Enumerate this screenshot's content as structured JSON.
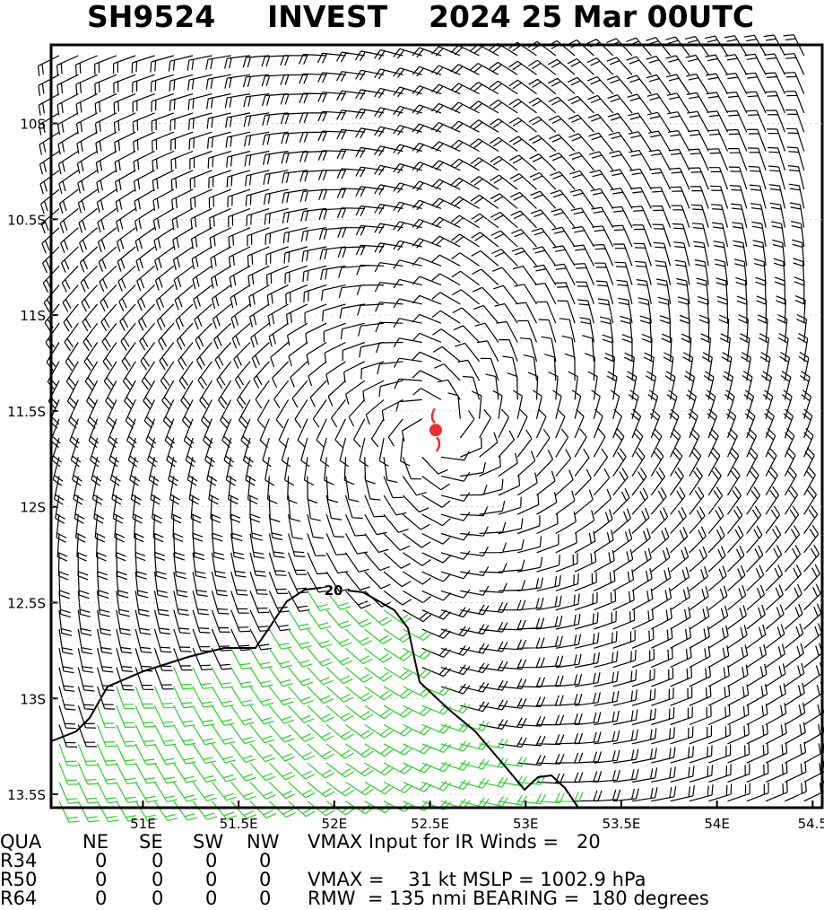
{
  "title": {
    "storm_id": "SH9524",
    "name": "INVEST",
    "time": "2024 25 Mar 00UTC"
  },
  "map": {
    "lon_range": [
      50.52,
      54.55
    ],
    "lat_range": [
      -9.59,
      -13.57
    ],
    "lat_ticks": [
      {
        "value": -10,
        "label": "10S"
      },
      {
        "value": -10.5,
        "label": "10.5S"
      },
      {
        "value": -11,
        "label": "11S"
      },
      {
        "value": -11.5,
        "label": "11.5S"
      },
      {
        "value": -12,
        "label": "12S"
      },
      {
        "value": -12.5,
        "label": "12.5S"
      },
      {
        "value": -13,
        "label": "13S"
      },
      {
        "value": -13.5,
        "label": "13.5S"
      }
    ],
    "lon_ticks": [
      {
        "value": 51,
        "label": "51E"
      },
      {
        "value": 51.5,
        "label": "51.5E"
      },
      {
        "value": 52,
        "label": "52E"
      },
      {
        "value": 52.5,
        "label": "52.5E"
      },
      {
        "value": 53,
        "label": "53E"
      },
      {
        "value": 53.5,
        "label": "53.5E"
      },
      {
        "value": 54,
        "label": "54E"
      },
      {
        "value": 54.5,
        "label": "54.5"
      }
    ],
    "center": {
      "lon": 52.53,
      "lat": -11.6
    },
    "contour_label": "20"
  },
  "table": {
    "header": [
      "QUA",
      "NE",
      "SE",
      "SW",
      "NW"
    ],
    "rows": [
      [
        "R34",
        0,
        0,
        0,
        0
      ],
      [
        "R50",
        0,
        0,
        0,
        0
      ],
      [
        "R64",
        0,
        0,
        0,
        0
      ]
    ]
  },
  "info": [
    "VMAX Input for IR Winds =   20",
    "VMAX =    31 kt MSLP = 1002.9 hPa",
    "RMW  = 135 nmi BEARING =  180 degrees"
  ]
}
